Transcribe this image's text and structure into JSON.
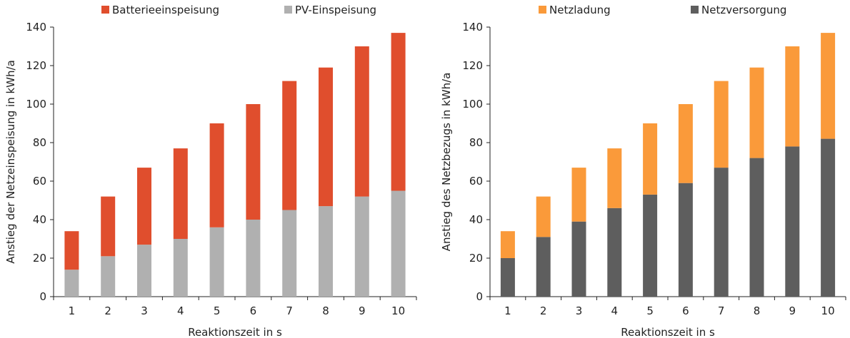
{
  "chart_data": [
    {
      "type": "bar",
      "stacked": true,
      "title": "",
      "xlabel": "Reaktionszeit in s",
      "ylabel": "Anstieg der Netzeinspeisung in kWh/a",
      "ylim": [
        0,
        140
      ],
      "yticks": [
        0,
        20,
        40,
        60,
        80,
        100,
        120,
        140
      ],
      "grid": false,
      "legend_position": "top",
      "categories": [
        "1",
        "2",
        "3",
        "4",
        "5",
        "6",
        "7",
        "8",
        "9",
        "10"
      ],
      "series": [
        {
          "name": "PV-Einspeisung",
          "color": "#b0b0b0",
          "values": [
            14,
            21,
            27,
            30,
            36,
            40,
            45,
            47,
            52,
            55
          ]
        },
        {
          "name": "Batterieeinspeisung",
          "color": "#e04e2d",
          "values": [
            20,
            31,
            40,
            47,
            54,
            60,
            67,
            72,
            78,
            82
          ]
        }
      ],
      "legend_order": [
        1,
        0
      ]
    },
    {
      "type": "bar",
      "stacked": true,
      "title": "",
      "xlabel": "Reaktionszeit in s",
      "ylabel": "Anstieg des Netzbezugs in kWh/a",
      "ylim": [
        0,
        140
      ],
      "yticks": [
        0,
        20,
        40,
        60,
        80,
        100,
        120,
        140
      ],
      "grid": false,
      "legend_position": "top",
      "categories": [
        "1",
        "2",
        "3",
        "4",
        "5",
        "6",
        "7",
        "8",
        "9",
        "10"
      ],
      "series": [
        {
          "name": "Netzversorgung",
          "color": "#5e5e5e",
          "values": [
            20,
            31,
            39,
            46,
            53,
            59,
            67,
            72,
            78,
            82
          ]
        },
        {
          "name": "Netzladung",
          "color": "#fa9a3a",
          "values": [
            14,
            21,
            28,
            31,
            37,
            41,
            45,
            47,
            52,
            55
          ]
        }
      ],
      "legend_order": [
        1,
        0
      ]
    }
  ]
}
